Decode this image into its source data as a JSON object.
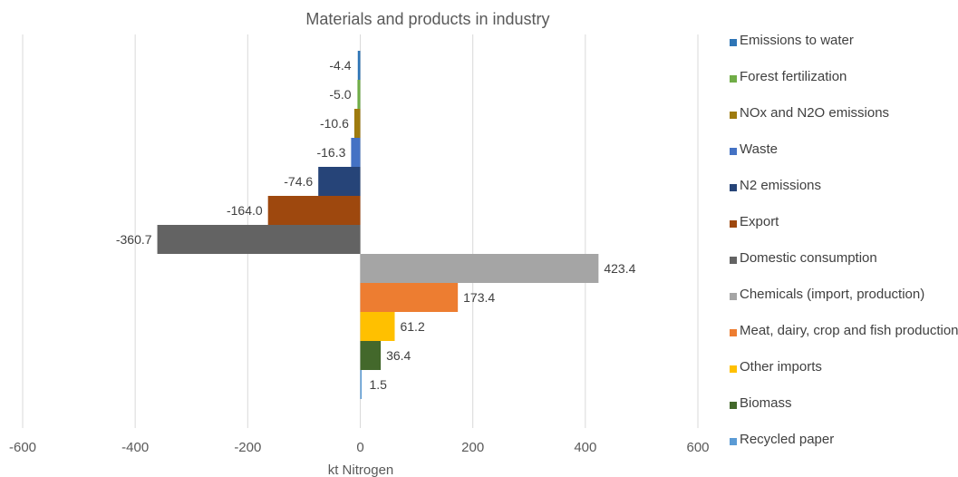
{
  "chart_data": {
    "type": "bar",
    "orientation": "horizontal",
    "title": "Materials and products in industry",
    "xlabel": "kt Nitrogen",
    "ylabel": "",
    "xlim": [
      -600,
      600
    ],
    "x_ticks": [
      "-600",
      "-400",
      "-200",
      "0",
      "200",
      "400",
      "600"
    ],
    "grid": "vertical",
    "legend_position": "right",
    "series": [
      {
        "name": "Emissions to water",
        "value": -4.4,
        "label": "-4.4",
        "color": "#2E75B6"
      },
      {
        "name": "Forest fertilization",
        "value": -5.0,
        "label": "-5.0",
        "color": "#70AD47"
      },
      {
        "name": "NOx and N2O emissions",
        "value": -10.6,
        "label": "-10.6",
        "color": "#9E7B0E"
      },
      {
        "name": "Waste",
        "value": -16.3,
        "label": "-16.3",
        "color": "#4472C4"
      },
      {
        "name": "N2 emissions",
        "value": -74.6,
        "label": "-74.6",
        "color": "#264478"
      },
      {
        "name": "Export",
        "value": -164.0,
        "label": "-164.0",
        "color": "#9E480E"
      },
      {
        "name": "Domestic consumption",
        "value": -360.7,
        "label": "-360.7",
        "color": "#636363"
      },
      {
        "name": "Chemicals (import, production)",
        "value": 423.4,
        "label": "423.4",
        "color": "#A5A5A5"
      },
      {
        "name": "Meat, dairy, crop and fish production",
        "value": 173.4,
        "label": "173.4",
        "color": "#ED7D31"
      },
      {
        "name": "Other imports",
        "value": 61.2,
        "label": "61.2",
        "color": "#FFC000"
      },
      {
        "name": "Biomass",
        "value": 36.4,
        "label": "36.4",
        "color": "#43682B"
      },
      {
        "name": "Recycled paper",
        "value": 1.5,
        "label": "1.5",
        "color": "#5B9BD5"
      }
    ]
  }
}
